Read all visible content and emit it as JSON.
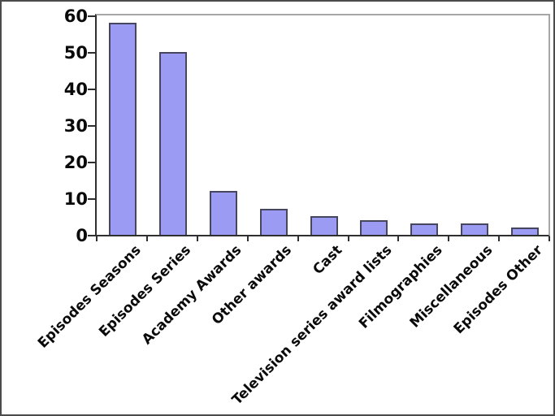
{
  "chart_data": {
    "type": "bar",
    "title": "",
    "xlabel": "",
    "ylabel": "",
    "categories": [
      "Episodes Seasons",
      "Episodes Series",
      "Academy Awards",
      "Other awards",
      "Cast",
      "Television series award lists",
      "Filmographies",
      "Miscellaneous",
      "Episodes Other"
    ],
    "values": [
      58,
      50,
      12,
      7,
      5,
      4,
      3,
      3,
      2
    ],
    "ylim": [
      0,
      60
    ],
    "yticks": [
      0,
      10,
      20,
      30,
      40,
      50,
      60
    ],
    "grid": false,
    "legend": false,
    "x_label_rotation_deg": 45,
    "colors": {
      "bar_fill": "#9b9bf3",
      "bar_border": "#46465e",
      "axis": "#2f2f2f",
      "plot_frame": "#a7a7a7",
      "text": "#0a0a0a",
      "background": "#ffffff",
      "outer_border": "#4b4b4b"
    }
  }
}
